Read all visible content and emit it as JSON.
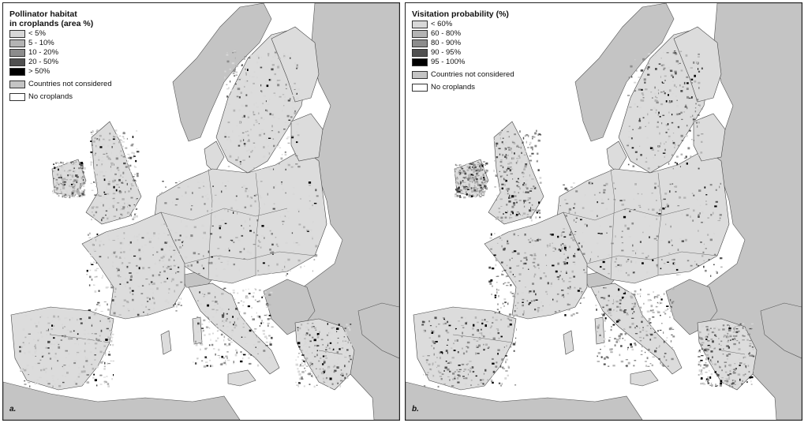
{
  "panels": [
    {
      "label": "a.",
      "legend_title": "Pollinator habitat\nin croplands (area %)",
      "classes": [
        {
          "label": "< 5%",
          "color": "#d8d8d8"
        },
        {
          "label": "5 - 10%",
          "color": "#b4b4b4"
        },
        {
          "label": "10 - 20%",
          "color": "#8c8c8c"
        },
        {
          "label": "20 - 50%",
          "color": "#505050"
        },
        {
          "label": "> 50%",
          "color": "#000000"
        }
      ],
      "not_considered": {
        "label": "Countries not considered",
        "color": "#c4c4c4"
      },
      "no_croplands": {
        "label": "No croplands",
        "color": "#ffffff"
      }
    },
    {
      "label": "b.",
      "legend_title": "Visitation probability (%)",
      "classes": [
        {
          "label": "< 60%",
          "color": "#d8d8d8"
        },
        {
          "label": "60 - 80%",
          "color": "#b4b4b4"
        },
        {
          "label": "80 - 90%",
          "color": "#8c8c8c"
        },
        {
          "label": "90 - 95%",
          "color": "#505050"
        },
        {
          "label": "95 - 100%",
          "color": "#000000"
        }
      ],
      "not_considered": {
        "label": "Countries not considered",
        "color": "#c4c4c4"
      },
      "no_croplands": {
        "label": "No croplands",
        "color": "#ffffff"
      }
    }
  ]
}
